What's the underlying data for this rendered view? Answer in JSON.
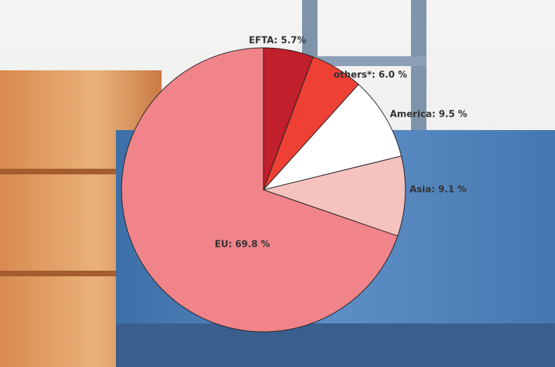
{
  "chart_data": {
    "type": "pie",
    "categories": [
      "EFTA: 5.7%",
      "others*: 6.0 %",
      "America: 9.5 %",
      "Asia: 9.1 %",
      "EU: 69.8 %"
    ],
    "values": [
      5.7,
      6.0,
      9.5,
      9.1,
      69.8
    ],
    "colors": [
      "#c01f2b",
      "#ee4035",
      "#ffffff",
      "#f5c2be",
      "#f0848a"
    ]
  }
}
